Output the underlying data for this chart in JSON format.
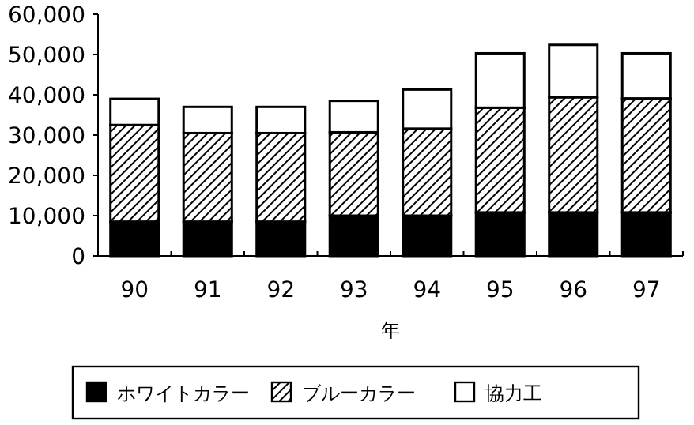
{
  "chart_data": {
    "type": "bar",
    "stacked": true,
    "xlabel": "年",
    "categories": [
      "90",
      "91",
      "92",
      "93",
      "94",
      "95",
      "96",
      "97"
    ],
    "series": [
      {
        "name": "ホワイトカラー",
        "color": "#000000",
        "values": [
          8500,
          8500,
          8500,
          10000,
          10000,
          10800,
          10800,
          10800
        ]
      },
      {
        "name": "ブルーカラー",
        "color": "#000000",
        "values": [
          24000,
          22000,
          22000,
          20700,
          21600,
          26000,
          28600,
          28300
        ]
      },
      {
        "name": "協力工",
        "color": "#ffffff",
        "values": [
          6500,
          6500,
          6500,
          7800,
          9700,
          13500,
          13000,
          11200
        ]
      }
    ],
    "ylim": [
      0,
      60000
    ],
    "yticks": [
      {
        "value": 0,
        "label": "0"
      },
      {
        "value": 10000,
        "label": "10,000"
      },
      {
        "value": 20000,
        "label": "20,000"
      },
      {
        "value": 30000,
        "label": "30,000"
      },
      {
        "value": 40000,
        "label": "40,000"
      },
      {
        "value": 50000,
        "label": "50,000"
      },
      {
        "value": 60000,
        "label": "60,000"
      }
    ],
    "grid": false,
    "legend": "bottom"
  }
}
